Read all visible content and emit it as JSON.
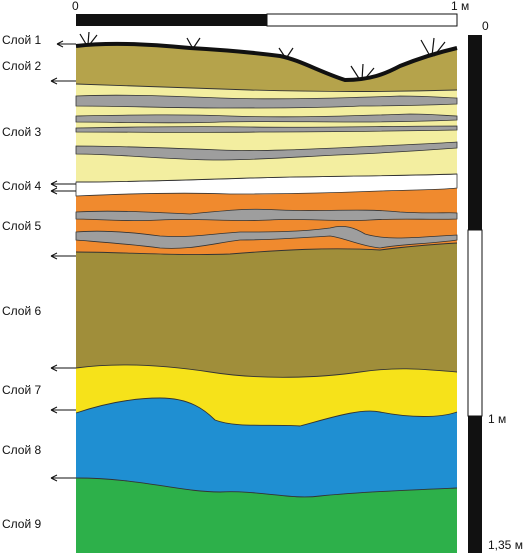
{
  "top_scale": {
    "start": "0",
    "end": "1 м"
  },
  "right_scale": {
    "top": "0",
    "middle": "1 м",
    "bottom": "1,35 м"
  },
  "layers": [
    {
      "label": "Слой 1"
    },
    {
      "label": "Слой 2"
    },
    {
      "label": "Слой 3"
    },
    {
      "label": "Слой 4"
    },
    {
      "label": "Слой 5"
    },
    {
      "label": "Слой 6"
    },
    {
      "label": "Слой 7"
    },
    {
      "label": "Слой 8"
    },
    {
      "label": "Слой 9"
    }
  ],
  "colors": {
    "olive_light": "#b5a34b",
    "pale_yellow": "#f3eea0",
    "grey": "#9e9e9e",
    "white": "#ffffff",
    "orange": "#f08a2e",
    "olive_dark": "#a08e3a",
    "yellow": "#f6e21a",
    "blue": "#1f8fd2",
    "green": "#2db04a",
    "black": "#111111"
  }
}
